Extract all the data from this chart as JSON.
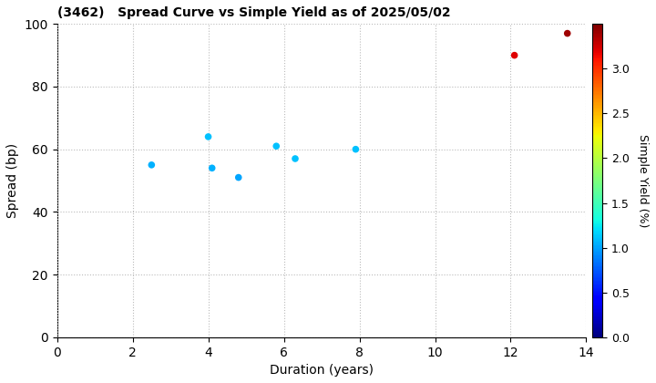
{
  "title": "(3462)   Spread Curve vs Simple Yield as of 2025/05/02",
  "xlabel": "Duration (years)",
  "ylabel": "Spread (bp)",
  "colorbar_label": "Simple Yield (%)",
  "xlim": [
    0,
    14
  ],
  "ylim": [
    0,
    100
  ],
  "xticks": [
    0,
    2,
    4,
    6,
    8,
    10,
    12,
    14
  ],
  "yticks": [
    0,
    20,
    40,
    60,
    80,
    100
  ],
  "colorbar_ticks": [
    0.0,
    0.5,
    1.0,
    1.5,
    2.0,
    2.5,
    3.0
  ],
  "color_vmin": 0.0,
  "color_vmax": 3.5,
  "points": [
    {
      "duration": 2.5,
      "spread": 55,
      "simple_yield": 1.05
    },
    {
      "duration": 4.0,
      "spread": 64,
      "simple_yield": 1.1
    },
    {
      "duration": 4.1,
      "spread": 54,
      "simple_yield": 1.05
    },
    {
      "duration": 4.8,
      "spread": 51,
      "simple_yield": 1.0
    },
    {
      "duration": 5.8,
      "spread": 61,
      "simple_yield": 1.1
    },
    {
      "duration": 6.3,
      "spread": 57,
      "simple_yield": 1.1
    },
    {
      "duration": 7.9,
      "spread": 60,
      "simple_yield": 1.1
    },
    {
      "duration": 12.1,
      "spread": 90,
      "simple_yield": 3.2
    },
    {
      "duration": 13.5,
      "spread": 97,
      "simple_yield": 3.4
    }
  ],
  "marker_size": 30,
  "background_color": "#ffffff",
  "grid_color": "#bbbbbb",
  "grid_style": "dotted",
  "fig_width": 7.2,
  "fig_height": 4.2,
  "dpi": 100
}
